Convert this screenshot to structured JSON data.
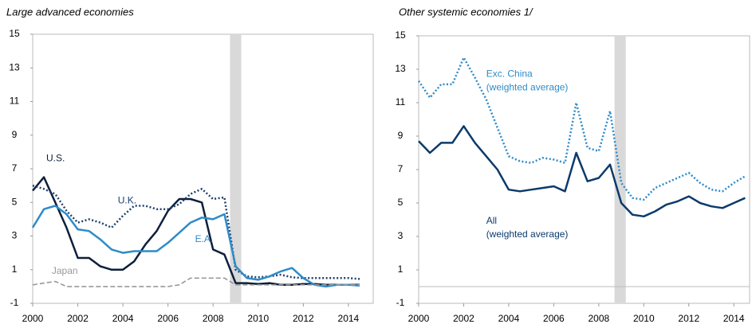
{
  "chart_data": [
    {
      "type": "line",
      "title": "Large advanced economies",
      "x": [
        2000,
        2000.5,
        2001,
        2001.5,
        2002,
        2002.5,
        2003,
        2003.5,
        2004,
        2004.5,
        2005,
        2005.5,
        2006,
        2006.5,
        2007,
        2007.5,
        2008,
        2008.5,
        2009,
        2009.5,
        2010,
        2010.5,
        2011,
        2011.5,
        2012,
        2012.5,
        2013,
        2013.5,
        2014,
        2014.5
      ],
      "xlim": [
        2000,
        2015.1
      ],
      "xticks": [
        2000,
        2002,
        2004,
        2006,
        2008,
        2010,
        2012,
        2014
      ],
      "ylim": [
        -1,
        15
      ],
      "yticks": [
        -1,
        1,
        3,
        5,
        7,
        9,
        11,
        13,
        15
      ],
      "shaded": [
        2008.75,
        2009.25
      ],
      "zero_line": false,
      "series": [
        {
          "name": "U.S.",
          "color": "#0d1f3c",
          "style": "solid",
          "values": [
            5.7,
            6.5,
            5.0,
            3.5,
            1.7,
            1.7,
            1.2,
            1.0,
            1.0,
            1.5,
            2.5,
            3.3,
            4.5,
            5.2,
            5.2,
            5.0,
            2.2,
            1.9,
            0.2,
            0.2,
            0.15,
            0.2,
            0.1,
            0.1,
            0.15,
            0.15,
            0.1,
            0.1,
            0.1,
            0.1
          ]
        },
        {
          "name": "U.K.",
          "color": "#1f3f6e",
          "style": "dotted",
          "values": [
            6.0,
            5.8,
            5.5,
            4.5,
            3.8,
            4.0,
            3.8,
            3.5,
            4.2,
            4.8,
            4.8,
            4.6,
            4.6,
            4.9,
            5.5,
            5.8,
            5.2,
            5.3,
            1.0,
            0.6,
            0.55,
            0.6,
            0.7,
            0.55,
            0.5,
            0.5,
            0.5,
            0.5,
            0.5,
            0.45
          ]
        },
        {
          "name": "E.A.",
          "color": "#2e8bc8",
          "style": "solid",
          "values": [
            3.5,
            4.6,
            4.8,
            4.3,
            3.4,
            3.3,
            2.8,
            2.2,
            2.0,
            2.1,
            2.1,
            2.1,
            2.6,
            3.2,
            3.8,
            4.1,
            4.0,
            4.3,
            1.2,
            0.5,
            0.4,
            0.6,
            0.9,
            1.1,
            0.5,
            0.1,
            0.0,
            0.1,
            0.1,
            0.05
          ]
        },
        {
          "name": "Japan",
          "color": "#999999",
          "style": "dashed",
          "values": [
            0.1,
            0.2,
            0.3,
            0.0,
            0.0,
            0.0,
            0.0,
            0.0,
            0.0,
            0.0,
            0.0,
            0.0,
            0.0,
            0.1,
            0.5,
            0.5,
            0.5,
            0.5,
            0.1,
            0.1,
            0.1,
            0.1,
            0.1,
            0.1,
            0.1,
            0.1,
            0.1,
            0.1,
            0.1,
            0.1
          ]
        }
      ]
    },
    {
      "type": "line",
      "title": "Other systemic economies 1/",
      "x": [
        2000,
        2000.5,
        2001,
        2001.5,
        2002,
        2002.5,
        2003,
        2003.5,
        2004,
        2004.5,
        2005,
        2005.5,
        2006,
        2006.5,
        2007,
        2007.5,
        2008,
        2008.5,
        2009,
        2009.5,
        2010,
        2010.5,
        2011,
        2011.5,
        2012,
        2012.5,
        2013,
        2013.5,
        2014,
        2014.5
      ],
      "xlim": [
        2000,
        2014.7
      ],
      "xticks": [
        2000,
        2002,
        2004,
        2006,
        2008,
        2010,
        2012,
        2014
      ],
      "ylim": [
        -1,
        15
      ],
      "yticks": [
        -1,
        1,
        3,
        5,
        7,
        9,
        11,
        13,
        15
      ],
      "shaded": [
        2008.7,
        2009.2
      ],
      "zero_line": true,
      "series": [
        {
          "name": "All (weighted average)",
          "color": "#0b3a6b",
          "style": "solid",
          "values": [
            8.7,
            8.0,
            8.6,
            8.6,
            9.6,
            8.6,
            7.8,
            7.0,
            5.8,
            5.7,
            5.8,
            5.9,
            6.0,
            5.7,
            8.0,
            6.3,
            6.5,
            7.3,
            5.0,
            4.3,
            4.2,
            4.5,
            4.9,
            5.1,
            5.4,
            5.0,
            4.8,
            4.7,
            5.0,
            5.3
          ]
        },
        {
          "name": "Exc. China (weighted average)",
          "color": "#2e8bc8",
          "style": "dotted",
          "values": [
            12.3,
            11.3,
            12.1,
            12.1,
            13.7,
            12.5,
            11.2,
            9.5,
            7.8,
            7.5,
            7.4,
            7.7,
            7.6,
            7.4,
            11.0,
            8.3,
            8.1,
            10.5,
            6.2,
            5.3,
            5.2,
            5.9,
            6.2,
            6.5,
            6.8,
            6.2,
            5.8,
            5.7,
            6.2,
            6.6
          ]
        }
      ]
    }
  ]
}
